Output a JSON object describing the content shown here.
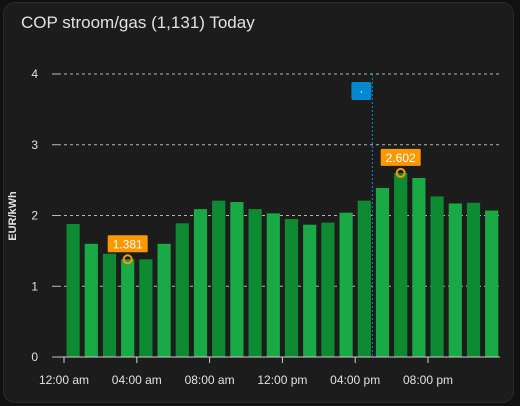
{
  "card": {
    "title": "COP stroom/gas (1,131) Today"
  },
  "colors": {
    "background": "#1c1c1c",
    "bar_dark": "#0d8a32",
    "bar_light": "#19aa45",
    "annotation": "#ff9800",
    "marker": "#0288d1",
    "grid": "#d0d0d0",
    "text": "#e1e1e1"
  },
  "chart_data": {
    "type": "bar",
    "ylabel": "EUR/kWh",
    "ylim": [
      0,
      4
    ],
    "yticks": [
      "0",
      "1",
      "2",
      "3",
      "4"
    ],
    "xticks": [
      "12:00 am",
      "04:00 am",
      "08:00 am",
      "12:00 pm",
      "04:00 pm",
      "08:00 pm"
    ],
    "values": [
      1.88,
      1.6,
      1.46,
      1.38,
      1.38,
      1.6,
      1.89,
      2.09,
      2.21,
      2.19,
      2.09,
      2.03,
      1.95,
      1.87,
      1.9,
      2.04,
      2.21,
      2.39,
      2.6,
      2.53,
      2.27,
      2.17,
      2.18,
      2.07
    ],
    "grid": true,
    "annotations": [
      {
        "label": "1.381",
        "index": 3,
        "value": 1.381
      },
      {
        "label": "2.602",
        "index": 18,
        "value": 2.602
      }
    ],
    "now_marker": {
      "index": 16,
      "label": "·"
    }
  }
}
